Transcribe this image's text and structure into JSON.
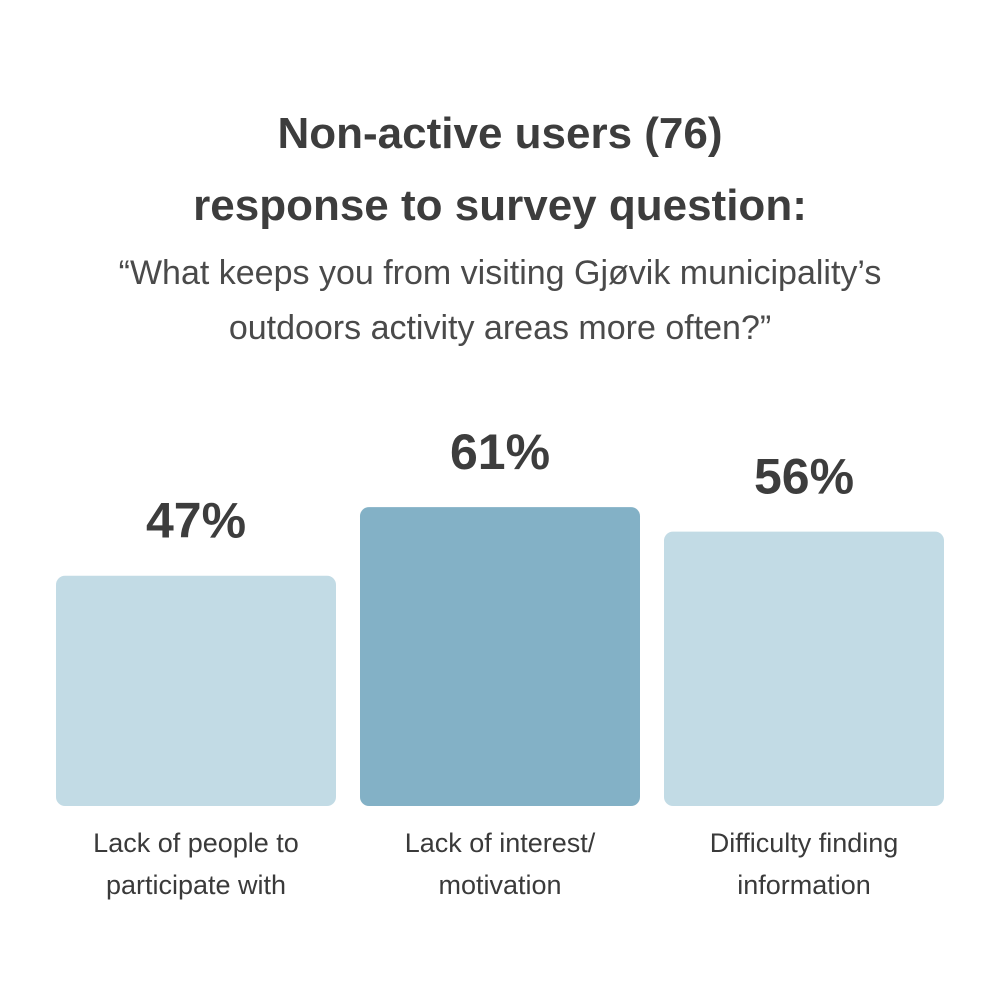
{
  "header": {
    "title_line1": "Non-active users (76)",
    "title_line2": "response to survey question:",
    "question_line1": "“What keeps you from visiting Gjøvik municipality’s",
    "question_line2": "outdoors activity areas more often?”"
  },
  "chart_data": {
    "type": "bar",
    "categories": [
      [
        "Lack of people to",
        "participate with"
      ],
      [
        "Lack of interest/",
        "motivation"
      ],
      [
        "Difficulty finding",
        "information"
      ]
    ],
    "values": [
      47,
      61,
      56
    ],
    "value_labels": [
      "47%",
      "61%",
      "56%"
    ],
    "colors": [
      "#c2dbe5",
      "#83b1c6",
      "#c2dbe5"
    ],
    "value_label_color": "#3d3d3d",
    "axes_visible": false,
    "grid": false
  }
}
